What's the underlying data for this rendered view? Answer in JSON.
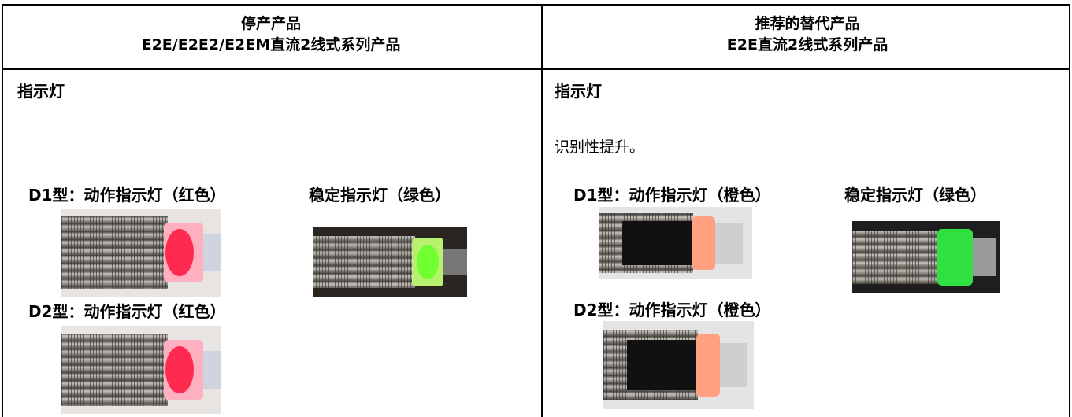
{
  "table": {
    "columns": [
      {
        "header": [
          "停产产品",
          "E2E/E2E2/E2EM直流2线式系列产品"
        ],
        "heading": "指示灯",
        "d1_label": "D1型：动作指示灯（红色）",
        "stable_label": "稳定指示灯（绿色）",
        "d2_label": "D2型：动作指示灯（红色）"
      },
      {
        "header": [
          "推荐的替代产品",
          "E2E直流2线式系列产品"
        ],
        "heading": "指示灯",
        "note": "识别性提升。",
        "d1_label": "D1型：动作指示灯（橙色）",
        "stable_label": "稳定指示灯（绿色）",
        "d2_label": "D2型：动作指示灯（橙色）"
      }
    ]
  }
}
